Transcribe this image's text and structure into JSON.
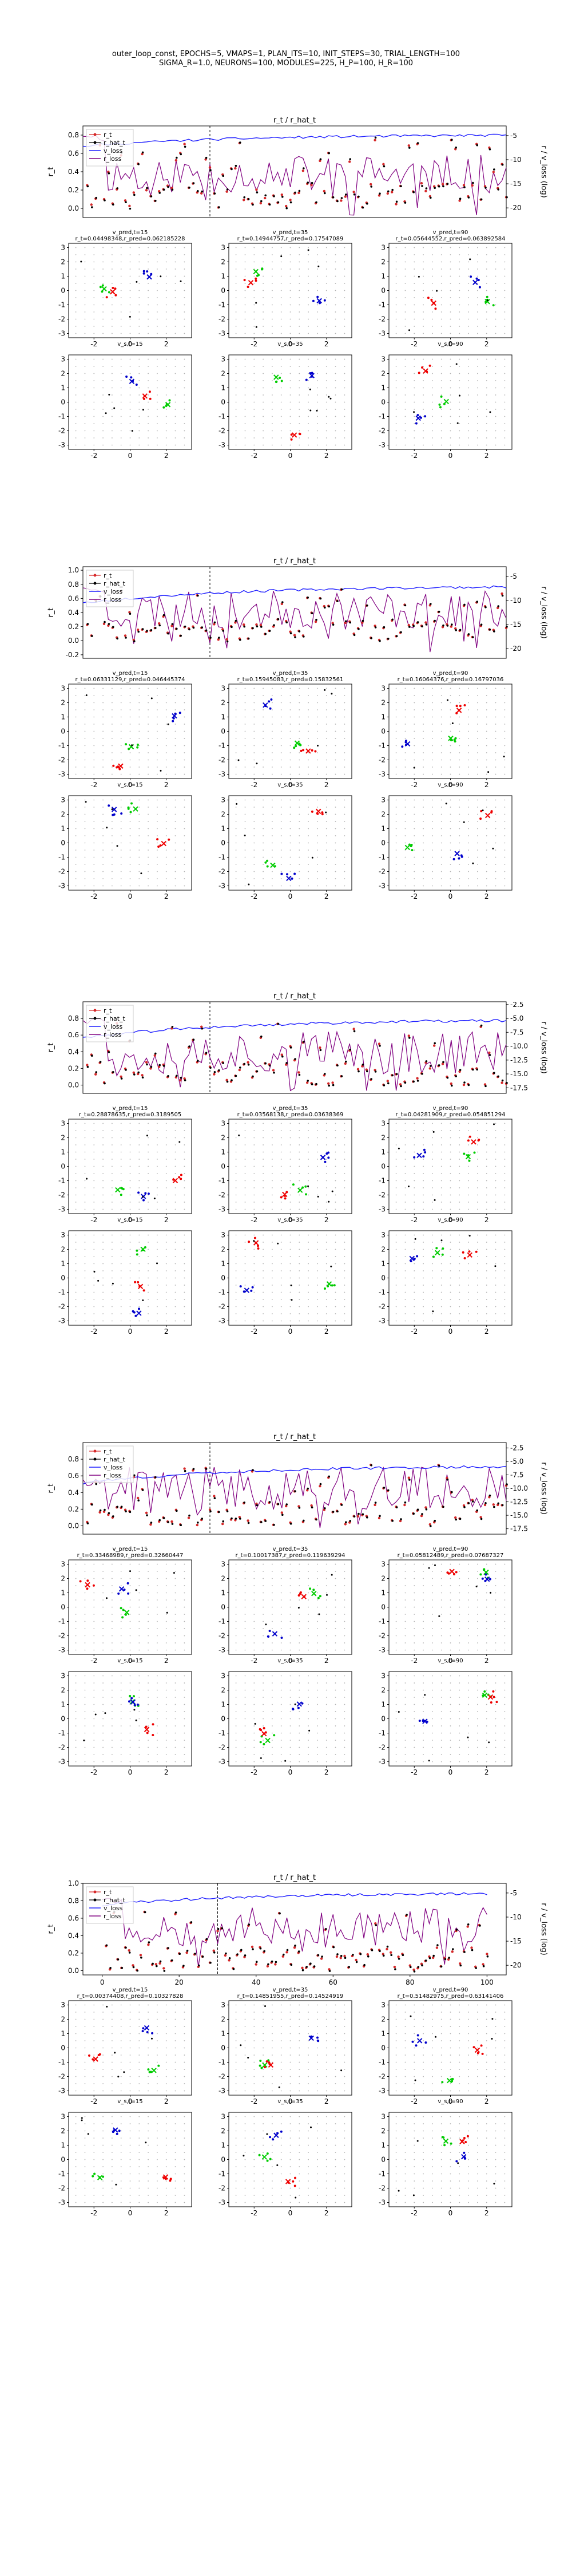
{
  "figure": {
    "title_line1": "outer_loop_const, EPOCHS=5, VMAPS=1, PLAN_ITS=10, INIT_STEPS=30, TRIAL_LENGTH=100",
    "title_line2": "SIGMA_R=1.0, NEURONS=100, MODULES=225, H_P=100, H_R=100"
  },
  "colors": {
    "r_t": "#d62728",
    "r_hat_t": "#000000",
    "v_loss": "#1f1fff",
    "r_loss": "#800080",
    "grid_dot": "#b0b0b0",
    "goal": "#00cc00",
    "pred": "#0000cc",
    "true": "#ee0000"
  },
  "chart_data": [
    {
      "type": "line",
      "title": "r_t / r_hat_t",
      "ylabel_left": "r_t",
      "ylabel_right": "r / v_loss (log)",
      "xlim": [
        0,
        100
      ],
      "ylim": [
        -0.1,
        0.9
      ],
      "ylim_right": [
        -22,
        -3
      ],
      "yticks_left": [
        "0.0",
        "0.2",
        "0.4",
        "0.6",
        "0.8"
      ],
      "yticks_right": [
        "-5",
        "-10",
        "-15",
        "-20"
      ],
      "xticks": [],
      "legend": [
        "r_t",
        "r_hat_t",
        "v_loss",
        "r_loss"
      ],
      "legend_loc": "upper-left",
      "vline_x": 30,
      "v_start": -7.2,
      "v_end": -4.8,
      "r_start": -4.8,
      "r_level": -13,
      "seed": 11,
      "scatter_tiles": [
        {
          "title": "v_pred,t=15",
          "subtitle": "r_t=0.04498348,r_pred=0.062185228",
          "x_ticks": [
            "-2",
            "0",
            "2"
          ]
        },
        {
          "title": "v_pred,t=35",
          "subtitle": "r_t=0.14944757,r_pred=0.17547089",
          "x_ticks": [
            "-2",
            "0",
            "2"
          ]
        },
        {
          "title": "v_pred,t=90",
          "subtitle": "r_t=0.05644552,r_pred=0.063892584",
          "x_ticks": [
            "-2",
            "0",
            "2"
          ]
        },
        {
          "title": "v_s,t=15",
          "subtitle": "",
          "x_ticks": [
            "-2",
            "0",
            "2"
          ]
        },
        {
          "title": "v_s,t=35",
          "subtitle": "",
          "x_ticks": [
            "-2",
            "0",
            "2"
          ]
        },
        {
          "title": "v_s,t=90",
          "subtitle": "",
          "x_ticks": [
            "-2",
            "0",
            "2"
          ]
        }
      ]
    },
    {
      "type": "line",
      "title": "r_t / r_hat_t",
      "ylabel_left": "r_t",
      "ylabel_right": "r / v_loss (log)",
      "xlim": [
        0,
        100
      ],
      "ylim": [
        -0.25,
        1.05
      ],
      "ylim_right": [
        -22,
        -3
      ],
      "yticks_left": [
        "-0.2",
        "0.0",
        "0.2",
        "0.4",
        "0.6",
        "0.8",
        "1.0"
      ],
      "yticks_right": [
        "-5",
        "-10",
        "-15",
        "-20"
      ],
      "xticks": [],
      "legend": [
        "r_t",
        "r_hat_t",
        "v_loss",
        "r_loss"
      ],
      "legend_loc": "upper-left",
      "vline_x": 30,
      "v_start": -10.5,
      "v_end": -7,
      "r_start": -7,
      "r_level": -12,
      "seed": 23,
      "scatter_tiles": [
        {
          "title": "v_pred,t=15",
          "subtitle": "r_t=0.06331129,r_pred=0.046445374",
          "x_ticks": [
            "-2",
            "0",
            "2"
          ]
        },
        {
          "title": "v_pred,t=35",
          "subtitle": "r_t=0.15945083,r_pred=0.15832561",
          "x_ticks": [
            "-2",
            "0",
            "2"
          ]
        },
        {
          "title": "v_pred,t=90",
          "subtitle": "r_t=0.16064376,r_pred=0.16797036",
          "x_ticks": [
            "-2",
            "0",
            "2"
          ]
        },
        {
          "title": "v_s,t=15",
          "subtitle": "",
          "x_ticks": [
            "-2",
            "0",
            "2"
          ]
        },
        {
          "title": "v_s,t=35",
          "subtitle": "",
          "x_ticks": [
            "-2",
            "0",
            "2"
          ]
        },
        {
          "title": "v_s,t=90",
          "subtitle": "",
          "x_ticks": [
            "-2",
            "0",
            "2"
          ]
        }
      ]
    },
    {
      "type": "line",
      "title": "r_t / r_hat_t",
      "ylabel_left": "r_t",
      "ylabel_right": "r / v_loss (log)",
      "xlim": [
        0,
        100
      ],
      "ylim": [
        -0.1,
        1.0
      ],
      "ylim_right": [
        -18.5,
        -2
      ],
      "yticks_left": [
        "0.0",
        "0.2",
        "0.4",
        "0.6",
        "0.8"
      ],
      "yticks_right": [
        "-2.5",
        "-5.0",
        "-7.5",
        "-10.0",
        "-12.5",
        "-15.0",
        "-17.5"
      ],
      "xticks": [],
      "legend": [
        "r_t",
        "r_hat_t",
        "v_loss",
        "r_loss"
      ],
      "legend_loc": "upper-left",
      "vline_x": 30,
      "v_start": -8.5,
      "v_end": -5.2,
      "r_start": -5,
      "r_level": -11,
      "seed": 37,
      "scatter_tiles": [
        {
          "title": "v_pred,t=15",
          "subtitle": "r_t=0.28878635,r_pred=0.3189505",
          "x_ticks": [
            "-2",
            "0",
            "2"
          ]
        },
        {
          "title": "v_pred,t=35",
          "subtitle": "r_t=0.03568138,r_pred=0.03638369",
          "x_ticks": [
            "-2",
            "0",
            "2"
          ]
        },
        {
          "title": "v_pred,t=90",
          "subtitle": "r_t=0.04281909,r_pred=0.054851294",
          "x_ticks": [
            "-2",
            "0",
            "2"
          ]
        },
        {
          "title": "v_s,t=15",
          "subtitle": "",
          "x_ticks": [
            "-2",
            "0",
            "2"
          ]
        },
        {
          "title": "v_s,t=35",
          "subtitle": "",
          "x_ticks": [
            "-2",
            "0",
            "2"
          ]
        },
        {
          "title": "v_s,t=90",
          "subtitle": "",
          "x_ticks": [
            "-2",
            "0",
            "2"
          ]
        }
      ]
    },
    {
      "type": "line",
      "title": "r_t / r_hat_t",
      "ylabel_left": "r_t",
      "ylabel_right": "r / v_loss (log)",
      "xlim": [
        0,
        100
      ],
      "ylim": [
        -0.1,
        1.0
      ],
      "ylim_right": [
        -18.5,
        -1.5
      ],
      "yticks_left": [
        "0.0",
        "0.2",
        "0.4",
        "0.6",
        "0.8"
      ],
      "yticks_right": [
        "-2.5",
        "-5.0",
        "-7.5",
        "-10.0",
        "-12.5",
        "-15.0",
        "-17.5"
      ],
      "xticks": [],
      "legend": [
        "r_t",
        "r_hat_t",
        "v_loss",
        "r_loss"
      ],
      "legend_loc": "upper-left",
      "vline_x": 30,
      "v_start": -9,
      "v_end": -5.8,
      "r_start": -8,
      "r_level": -10,
      "seed": 41,
      "scatter_tiles": [
        {
          "title": "v_pred,t=15",
          "subtitle": "r_t=0.33468989,r_pred=0.32660447",
          "x_ticks": [
            "-2",
            "0",
            "2"
          ]
        },
        {
          "title": "v_pred,t=35",
          "subtitle": "r_t=0.10017387,r_pred=0.119639294",
          "x_ticks": [
            "-2",
            "0",
            "2"
          ]
        },
        {
          "title": "v_pred,t=90",
          "subtitle": "r_t=0.05812489,r_pred=0.07687327",
          "x_ticks": [
            "-2",
            "0",
            "2"
          ]
        },
        {
          "title": "v_s,t=15",
          "subtitle": "",
          "x_ticks": [
            "-2",
            "0",
            "2"
          ]
        },
        {
          "title": "v_s,t=35",
          "subtitle": "",
          "x_ticks": [
            "-2",
            "0",
            "2"
          ]
        },
        {
          "title": "v_s,t=90",
          "subtitle": "",
          "x_ticks": [
            "-2",
            "0",
            "2"
          ]
        }
      ]
    },
    {
      "type": "line",
      "title": "r_t / r_hat_t",
      "ylabel_left": "r_t",
      "ylabel_right": "r / v_loss (log)",
      "xlim": [
        -5,
        105
      ],
      "ylim": [
        -0.05,
        1.0
      ],
      "ylim_right": [
        -22,
        -3
      ],
      "yticks_left": [
        "0.0",
        "0.2",
        "0.4",
        "0.6",
        "0.8",
        "1.0"
      ],
      "yticks_right": [
        "-5",
        "-10",
        "-15",
        "-20"
      ],
      "xticks": [
        "0",
        "20",
        "40",
        "60",
        "80",
        "100"
      ],
      "legend": [
        "r_t",
        "r_hat_t",
        "v_loss",
        "r_loss"
      ],
      "legend_loc": "upper-left",
      "vline_x": 30,
      "v_start": -7.5,
      "v_end": -5,
      "r_start": -6,
      "r_level": -12,
      "seed": 53,
      "scatter_tiles": [
        {
          "title": "v_pred,t=15",
          "subtitle": "r_t=0.00374408,r_pred=0.10327828",
          "x_ticks": [
            "-2",
            "0",
            "2"
          ]
        },
        {
          "title": "v_pred,t=35",
          "subtitle": "r_t=0.14851955,r_pred=0.14524919",
          "x_ticks": [
            "-2",
            "0",
            "2"
          ]
        },
        {
          "title": "v_pred,t=90",
          "subtitle": "r_t=0.51482975,r_pred=0.63141406",
          "x_ticks": [
            "-2",
            "0",
            "2"
          ]
        },
        {
          "title": "v_s,t=15",
          "subtitle": "",
          "x_ticks": [
            "-2",
            "0",
            "2"
          ]
        },
        {
          "title": "v_s,t=35",
          "subtitle": "",
          "x_ticks": [
            "-2",
            "0",
            "2"
          ]
        },
        {
          "title": "v_s,t=90",
          "subtitle": "",
          "x_ticks": [
            "-2",
            "0",
            "2"
          ]
        }
      ]
    }
  ]
}
